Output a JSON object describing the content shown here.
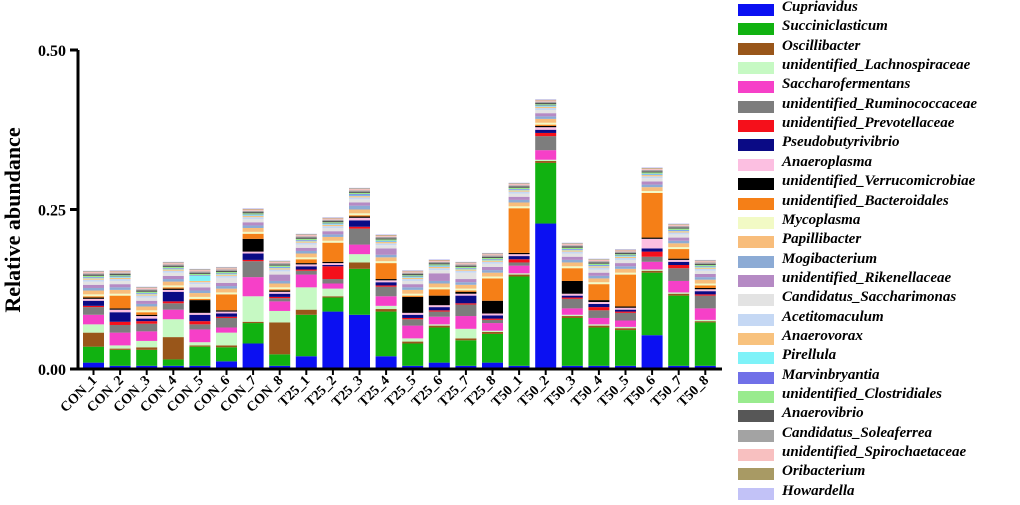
{
  "chart_data": {
    "type": "bar",
    "stacked": true,
    "ylabel": "Relative abundance",
    "xlabel": "",
    "ylim": [
      0,
      0.5
    ],
    "yticks": [
      "0.00",
      "0.25",
      "0.50"
    ],
    "ytick_values": [
      0,
      0.25,
      0.5
    ],
    "categories": [
      "CON_1",
      "CON_2",
      "CON_3",
      "CON_4",
      "CON_5",
      "CON_6",
      "CON_7",
      "CON_8",
      "T25_1",
      "T25_2",
      "T25_3",
      "T25_4",
      "T25_5",
      "T25_6",
      "T25_7",
      "T25_8",
      "T50_1",
      "T50_2",
      "T50_3",
      "T50_4",
      "T50_5",
      "T50_6",
      "T50_7",
      "T50_8"
    ],
    "legend_position": "right",
    "series": [
      {
        "name": "Cupriavidus",
        "color": "#0b10f2",
        "values": [
          0.01,
          0.005,
          0.005,
          0.005,
          0.005,
          0.012,
          0.04,
          0.005,
          0.02,
          0.09,
          0.085,
          0.02,
          0.005,
          0.01,
          0.005,
          0.01,
          0.005,
          0.228,
          0.005,
          0.005,
          0.005,
          0.053,
          0.005,
          0.005
        ]
      },
      {
        "name": "Succiniclasticum",
        "color": "#11b211",
        "values": [
          0.025,
          0.025,
          0.025,
          0.01,
          0.03,
          0.022,
          0.032,
          0.018,
          0.065,
          0.022,
          0.072,
          0.07,
          0.035,
          0.055,
          0.04,
          0.045,
          0.14,
          0.095,
          0.075,
          0.06,
          0.056,
          0.098,
          0.11,
          0.068
        ]
      },
      {
        "name": "Oscillibacter",
        "color": "#99561a",
        "values": [
          0.022,
          0.002,
          0.004,
          0.035,
          0.002,
          0.003,
          0.002,
          0.05,
          0.008,
          0.002,
          0.01,
          0.004,
          0.003,
          0.003,
          0.003,
          0.003,
          0.003,
          0.003,
          0.003,
          0.003,
          0.003,
          0.003,
          0.003,
          0.002
        ]
      },
      {
        "name": "unidentified_Lachnospiraceae",
        "color": "#c6f9c3",
        "values": [
          0.013,
          0.005,
          0.01,
          0.028,
          0.005,
          0.02,
          0.04,
          0.018,
          0.035,
          0.012,
          0.013,
          0.005,
          0.005,
          0.002,
          0.015,
          0.002,
          0.002,
          0.002,
          0.002,
          0.002,
          0.002,
          0.002,
          0.002,
          0.002
        ]
      },
      {
        "name": "Saccharofermentans",
        "color": "#f640c8",
        "values": [
          0.015,
          0.02,
          0.015,
          0.015,
          0.02,
          0.008,
          0.03,
          0.015,
          0.02,
          0.008,
          0.015,
          0.015,
          0.02,
          0.012,
          0.02,
          0.012,
          0.012,
          0.015,
          0.01,
          0.01,
          0.01,
          0.012,
          0.018,
          0.018
        ]
      },
      {
        "name": "unidentified_Ruminococcaceae",
        "color": "#7d7d7d",
        "values": [
          0.012,
          0.012,
          0.012,
          0.01,
          0.008,
          0.015,
          0.025,
          0.005,
          0.006,
          0.007,
          0.025,
          0.015,
          0.01,
          0.008,
          0.018,
          0.005,
          0.005,
          0.022,
          0.015,
          0.012,
          0.012,
          0.008,
          0.02,
          0.02
        ]
      },
      {
        "name": "unidentified_Prevotellaceae",
        "color": "#f5101b",
        "values": [
          0.002,
          0.005,
          0.004,
          0.003,
          0.005,
          0.002,
          0.002,
          0.002,
          0.002,
          0.02,
          0.003,
          0.002,
          0.002,
          0.002,
          0.002,
          0.002,
          0.005,
          0.005,
          0.002,
          0.005,
          0.002,
          0.008,
          0.005,
          0.002
        ]
      },
      {
        "name": "Pseudobutyrivibrio",
        "color": "#0a0a85",
        "values": [
          0.008,
          0.015,
          0.004,
          0.015,
          0.01,
          0.005,
          0.01,
          0.005,
          0.005,
          0.002,
          0.01,
          0.005,
          0.005,
          0.005,
          0.012,
          0.005,
          0.005,
          0.005,
          0.003,
          0.005,
          0.003,
          0.005,
          0.005,
          0.005
        ]
      },
      {
        "name": "Anaeroplasma",
        "color": "#fcbfe1",
        "values": [
          0.003,
          0.004,
          0.004,
          0.003,
          0.003,
          0.003,
          0.003,
          0.003,
          0.003,
          0.003,
          0.004,
          0.003,
          0.003,
          0.003,
          0.003,
          0.003,
          0.003,
          0.004,
          0.003,
          0.003,
          0.003,
          0.015,
          0.003,
          0.003
        ]
      },
      {
        "name": "unidentified_Verrucomicrobiae",
        "color": "#000000",
        "values": [
          0.002,
          0.002,
          0.002,
          0.002,
          0.02,
          0.002,
          0.02,
          0.002,
          0.002,
          0.002,
          0.002,
          0.002,
          0.025,
          0.015,
          0.003,
          0.02,
          0.002,
          0.002,
          0.02,
          0.003,
          0.002,
          0.002,
          0.002,
          0.002
        ]
      },
      {
        "name": "unidentified_Bacteroidales",
        "color": "#f57f17",
        "values": [
          0.002,
          0.02,
          0.004,
          0.002,
          0.002,
          0.025,
          0.008,
          0.002,
          0.006,
          0.03,
          0.002,
          0.025,
          0.002,
          0.01,
          0.002,
          0.035,
          0.07,
          0.002,
          0.02,
          0.025,
          0.05,
          0.07,
          0.015,
          0.004
        ]
      },
      {
        "name": "Mycoplasma",
        "color": "#f2fac5",
        "values": [
          0.003,
          0.003,
          0.003,
          0.003,
          0.003,
          0.003,
          0.003,
          0.003,
          0.003,
          0.003,
          0.003,
          0.003,
          0.003,
          0.003,
          0.003,
          0.003,
          0.003,
          0.003,
          0.003,
          0.003,
          0.003,
          0.003,
          0.003,
          0.003
        ]
      },
      {
        "name": "Papillibacter",
        "color": "#f8bd7b",
        "values": [
          0.006,
          0.006,
          0.006,
          0.006,
          0.006,
          0.006,
          0.006,
          0.006,
          0.006,
          0.006,
          0.006,
          0.006,
          0.006,
          0.006,
          0.006,
          0.006,
          0.006,
          0.006,
          0.006,
          0.006,
          0.006,
          0.006,
          0.006,
          0.006
        ]
      },
      {
        "name": "Mogibacterium",
        "color": "#8cabd5",
        "values": [
          0.004,
          0.004,
          0.004,
          0.004,
          0.004,
          0.004,
          0.004,
          0.004,
          0.004,
          0.004,
          0.006,
          0.004,
          0.004,
          0.004,
          0.004,
          0.004,
          0.004,
          0.004,
          0.004,
          0.004,
          0.004,
          0.004,
          0.004,
          0.004
        ]
      },
      {
        "name": "unidentified_Rikenellaceae",
        "color": "#b58ac4",
        "values": [
          0.005,
          0.005,
          0.005,
          0.005,
          0.005,
          0.005,
          0.005,
          0.01,
          0.005,
          0.005,
          0.005,
          0.01,
          0.005,
          0.012,
          0.005,
          0.005,
          0.005,
          0.005,
          0.005,
          0.005,
          0.005,
          0.005,
          0.005,
          0.005
        ]
      },
      {
        "name": "Candidatus_Saccharimonas",
        "color": "#e3e3e3",
        "values": [
          0.005,
          0.005,
          0.005,
          0.005,
          0.005,
          0.008,
          0.005,
          0.005,
          0.005,
          0.005,
          0.005,
          0.005,
          0.005,
          0.005,
          0.01,
          0.005,
          0.005,
          0.005,
          0.005,
          0.005,
          0.005,
          0.005,
          0.005,
          0.005
        ]
      },
      {
        "name": "Acetitomaculum",
        "color": "#c5d8f4",
        "values": [
          0.003,
          0.003,
          0.003,
          0.003,
          0.003,
          0.003,
          0.003,
          0.003,
          0.003,
          0.003,
          0.003,
          0.003,
          0.003,
          0.003,
          0.003,
          0.003,
          0.003,
          0.003,
          0.003,
          0.003,
          0.003,
          0.003,
          0.003,
          0.003
        ]
      },
      {
        "name": "Anaerovorax",
        "color": "#f8c27e",
        "values": [
          0.002,
          0.002,
          0.002,
          0.002,
          0.002,
          0.002,
          0.002,
          0.002,
          0.002,
          0.002,
          0.002,
          0.002,
          0.002,
          0.002,
          0.002,
          0.002,
          0.002,
          0.002,
          0.002,
          0.002,
          0.002,
          0.002,
          0.002,
          0.002
        ]
      },
      {
        "name": "Pirellula",
        "color": "#7ef2f8",
        "values": [
          0.001,
          0.001,
          0.001,
          0.001,
          0.008,
          0.001,
          0.001,
          0.001,
          0.001,
          0.001,
          0.001,
          0.001,
          0.001,
          0.001,
          0.001,
          0.001,
          0.001,
          0.001,
          0.001,
          0.001,
          0.001,
          0.001,
          0.001,
          0.001
        ]
      },
      {
        "name": "Marvinbryantia",
        "color": "#7070e8",
        "values": [
          0.001,
          0.001,
          0.001,
          0.001,
          0.001,
          0.001,
          0.001,
          0.001,
          0.001,
          0.001,
          0.002,
          0.001,
          0.001,
          0.001,
          0.001,
          0.001,
          0.001,
          0.001,
          0.001,
          0.001,
          0.001,
          0.001,
          0.001,
          0.001
        ]
      },
      {
        "name": "unidentified_Clostridiales",
        "color": "#99eb8e",
        "values": [
          0.002,
          0.002,
          0.002,
          0.002,
          0.002,
          0.002,
          0.002,
          0.002,
          0.002,
          0.002,
          0.002,
          0.002,
          0.002,
          0.002,
          0.002,
          0.002,
          0.002,
          0.002,
          0.002,
          0.002,
          0.002,
          0.002,
          0.002,
          0.002
        ]
      },
      {
        "name": "Anaerovibrio",
        "color": "#575757",
        "values": [
          0.002,
          0.002,
          0.002,
          0.002,
          0.002,
          0.002,
          0.002,
          0.002,
          0.002,
          0.002,
          0.002,
          0.002,
          0.002,
          0.002,
          0.002,
          0.002,
          0.002,
          0.002,
          0.002,
          0.002,
          0.002,
          0.002,
          0.002,
          0.002
        ]
      },
      {
        "name": "Candidatus_Soleaferrea",
        "color": "#a3a3a3",
        "values": [
          0.002,
          0.002,
          0.002,
          0.002,
          0.002,
          0.002,
          0.002,
          0.002,
          0.002,
          0.002,
          0.002,
          0.002,
          0.002,
          0.002,
          0.002,
          0.002,
          0.002,
          0.002,
          0.002,
          0.002,
          0.002,
          0.002,
          0.002,
          0.002
        ]
      },
      {
        "name": "unidentified_Spirochaetaceae",
        "color": "#f8c0c0",
        "values": [
          0.002,
          0.002,
          0.002,
          0.002,
          0.002,
          0.002,
          0.002,
          0.002,
          0.002,
          0.002,
          0.002,
          0.002,
          0.002,
          0.002,
          0.002,
          0.002,
          0.002,
          0.002,
          0.002,
          0.002,
          0.002,
          0.002,
          0.002,
          0.002
        ]
      },
      {
        "name": "Oribacterium",
        "color": "#a89a64",
        "values": [
          0.001,
          0.001,
          0.001,
          0.001,
          0.001,
          0.001,
          0.001,
          0.001,
          0.001,
          0.001,
          0.001,
          0.001,
          0.001,
          0.001,
          0.001,
          0.001,
          0.001,
          0.001,
          0.001,
          0.001,
          0.001,
          0.001,
          0.001,
          0.001
        ]
      },
      {
        "name": "Howardella",
        "color": "#c2c2f7",
        "values": [
          0.001,
          0.001,
          0.001,
          0.001,
          0.001,
          0.001,
          0.001,
          0.001,
          0.001,
          0.001,
          0.001,
          0.001,
          0.001,
          0.001,
          0.001,
          0.001,
          0.001,
          0.001,
          0.001,
          0.001,
          0.001,
          0.001,
          0.001,
          0.001
        ]
      }
    ]
  }
}
